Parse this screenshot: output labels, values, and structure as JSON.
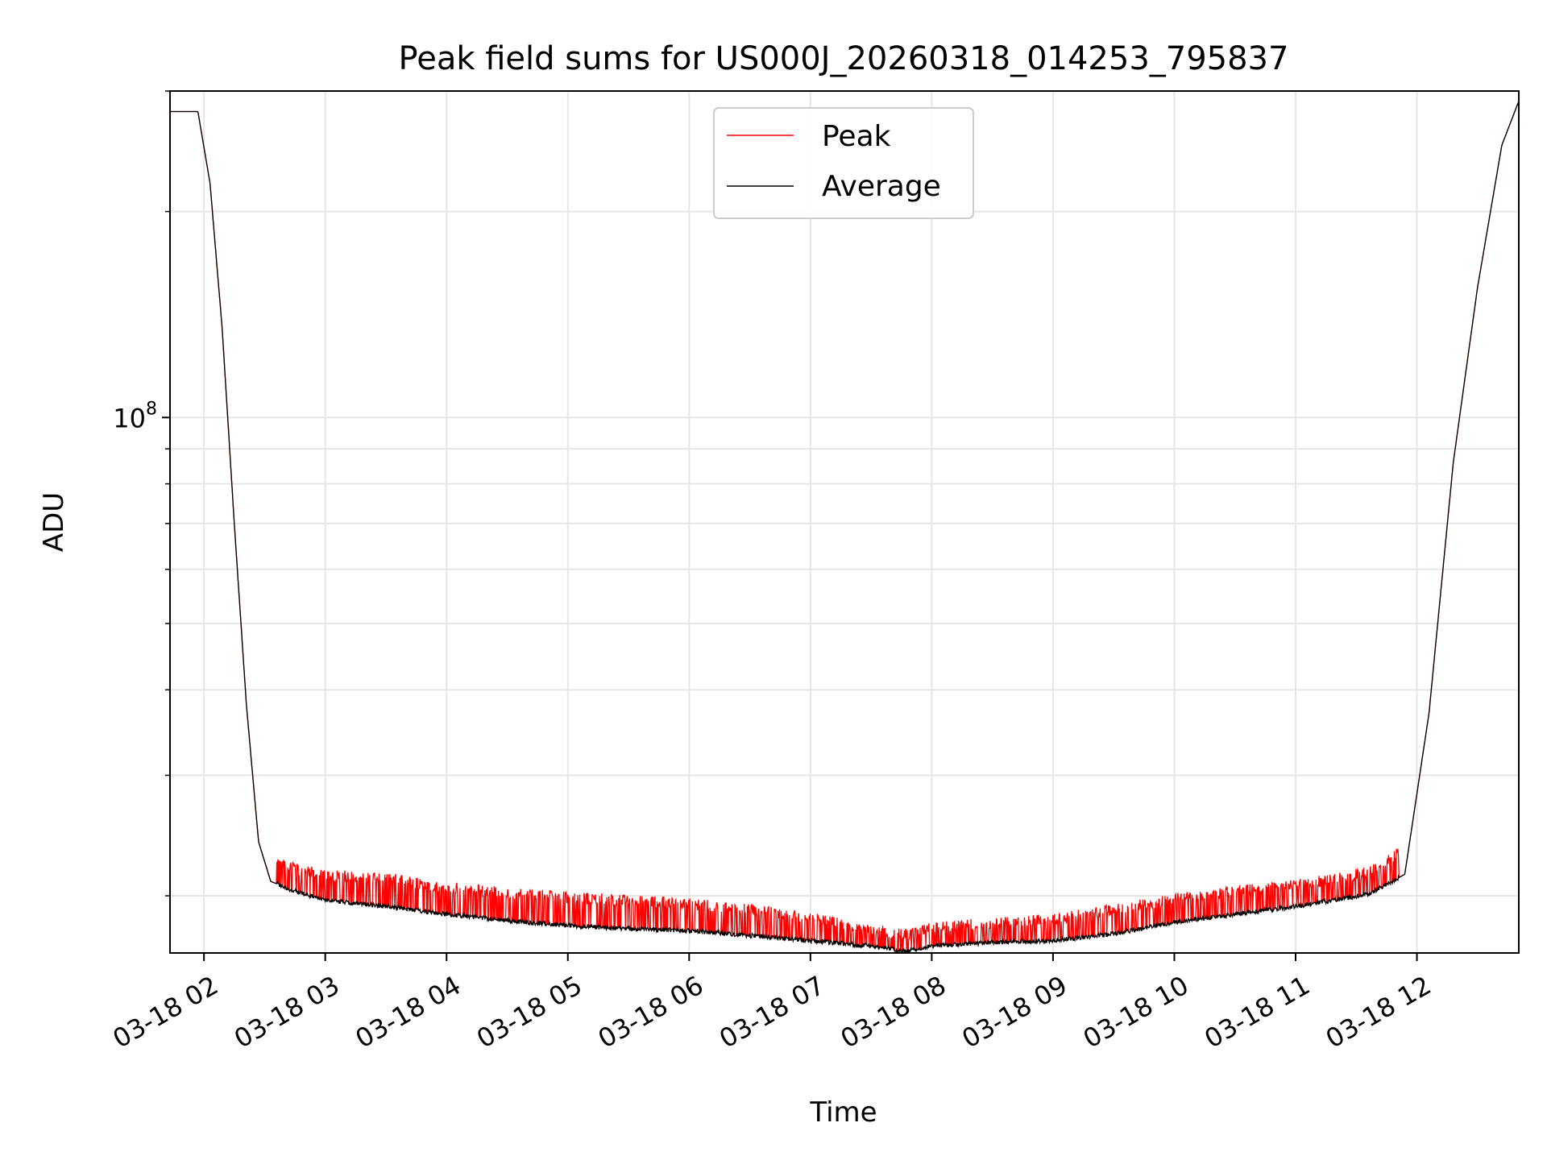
{
  "chart_data": {
    "type": "line",
    "title": "Peak field sums for US000J_20260318_014253_795837",
    "xlabel": "Time",
    "ylabel": "ADU",
    "yscale": "log",
    "ylim": [
      16500000,
      300000000
    ],
    "xlim_hours": [
      1.72,
      12.84
    ],
    "grid": true,
    "legend_position": "top-center",
    "x_ticks": [
      {
        "hour": 2,
        "label": "03-18 02"
      },
      {
        "hour": 3,
        "label": "03-18 03"
      },
      {
        "hour": 4,
        "label": "03-18 04"
      },
      {
        "hour": 5,
        "label": "03-18 05"
      },
      {
        "hour": 6,
        "label": "03-18 06"
      },
      {
        "hour": 7,
        "label": "03-18 07"
      },
      {
        "hour": 8,
        "label": "03-18 08"
      },
      {
        "hour": 9,
        "label": "03-18 09"
      },
      {
        "hour": 10,
        "label": "03-18 10"
      },
      {
        "hour": 11,
        "label": "03-18 11"
      },
      {
        "hour": 12,
        "label": "03-18 12"
      }
    ],
    "y_major_tick": {
      "value": 100000000,
      "base": "10",
      "exponent": "8"
    },
    "y_minor_ticks": [
      20000000,
      30000000,
      40000000,
      50000000,
      60000000,
      70000000,
      80000000,
      90000000,
      200000000,
      300000000
    ],
    "series": [
      {
        "name": "Peak",
        "color": "#ff0000",
        "style": "spiky, same baseline as Average with frequent upward spikes of roughly 5-10%",
        "x_hours": [
          1.72,
          1.95,
          2.05,
          2.15,
          2.25,
          2.35,
          2.45,
          2.55,
          2.75,
          3.0,
          3.5,
          4.0,
          4.5,
          5.0,
          5.5,
          6.0,
          6.5,
          7.0,
          7.5,
          7.8,
          8.0,
          8.5,
          9.0,
          9.5,
          10.0,
          10.5,
          11.0,
          11.6,
          11.9,
          12.1,
          12.3,
          12.5,
          12.7,
          12.84
        ],
        "values": [
          280000000,
          280000000,
          220000000,
          135000000,
          70000000,
          38000000,
          24000000,
          22000000,
          21500000,
          21000000,
          20800000,
          20200000,
          19800000,
          19500000,
          19300000,
          19100000,
          18700000,
          18200000,
          17500000,
          17200000,
          17600000,
          17900000,
          18100000,
          18700000,
          19400000,
          19900000,
          20300000,
          21200000,
          23000000,
          39000000,
          90000000,
          160000000,
          255000000,
          290000000
        ]
      },
      {
        "name": "Average",
        "color": "#000000",
        "x_hours": [
          1.72,
          1.95,
          2.05,
          2.15,
          2.25,
          2.35,
          2.45,
          2.55,
          2.75,
          3.0,
          3.5,
          4.0,
          4.5,
          5.0,
          5.5,
          6.0,
          6.5,
          7.0,
          7.5,
          7.8,
          8.0,
          8.5,
          9.0,
          9.5,
          10.0,
          10.5,
          11.0,
          11.6,
          11.9,
          12.1,
          12.3,
          12.5,
          12.7,
          12.84
        ],
        "values": [
          280000000,
          280000000,
          220000000,
          135000000,
          70000000,
          38000000,
          24000000,
          21000000,
          20300000,
          19700000,
          19300000,
          18800000,
          18400000,
          18100000,
          17900000,
          17800000,
          17500000,
          17200000,
          16900000,
          16600000,
          16900000,
          17100000,
          17200000,
          17600000,
          18300000,
          18800000,
          19300000,
          20100000,
          21500000,
          37000000,
          86000000,
          155000000,
          250000000,
          290000000
        ]
      }
    ]
  }
}
